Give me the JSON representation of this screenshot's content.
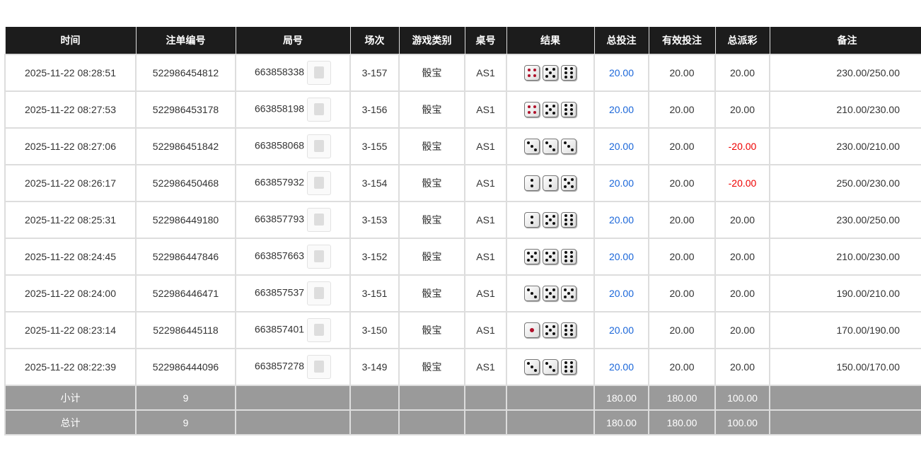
{
  "headers": [
    "时间",
    "注单编号",
    "局号",
    "场次",
    "游戏类别",
    "桌号",
    "结果",
    "总投注",
    "有效投注",
    "总派彩",
    "备注"
  ],
  "rows": [
    {
      "time": "2025-11-22 08:28:51",
      "bet_id": "522986454812",
      "round": "663858338",
      "session": "3-157",
      "game": "骰宝",
      "table": "AS1",
      "dice": [
        4,
        5,
        6
      ],
      "total_bet": "20.00",
      "valid_bet": "20.00",
      "payout": "20.00",
      "note": "230.00/250.00"
    },
    {
      "time": "2025-11-22 08:27:53",
      "bet_id": "522986453178",
      "round": "663858198",
      "session": "3-156",
      "game": "骰宝",
      "table": "AS1",
      "dice": [
        4,
        5,
        6
      ],
      "total_bet": "20.00",
      "valid_bet": "20.00",
      "payout": "20.00",
      "note": "210.00/230.00"
    },
    {
      "time": "2025-11-22 08:27:06",
      "bet_id": "522986451842",
      "round": "663858068",
      "session": "3-155",
      "game": "骰宝",
      "table": "AS1",
      "dice": [
        3,
        3,
        3
      ],
      "total_bet": "20.00",
      "valid_bet": "20.00",
      "payout": "-20.00",
      "note": "230.00/210.00"
    },
    {
      "time": "2025-11-22 08:26:17",
      "bet_id": "522986450468",
      "round": "663857932",
      "session": "3-154",
      "game": "骰宝",
      "table": "AS1",
      "dice": [
        2,
        2,
        5
      ],
      "total_bet": "20.00",
      "valid_bet": "20.00",
      "payout": "-20.00",
      "note": "250.00/230.00"
    },
    {
      "time": "2025-11-22 08:25:31",
      "bet_id": "522986449180",
      "round": "663857793",
      "session": "3-153",
      "game": "骰宝",
      "table": "AS1",
      "dice": [
        2,
        5,
        6
      ],
      "total_bet": "20.00",
      "valid_bet": "20.00",
      "payout": "20.00",
      "note": "230.00/250.00"
    },
    {
      "time": "2025-11-22 08:24:45",
      "bet_id": "522986447846",
      "round": "663857663",
      "session": "3-152",
      "game": "骰宝",
      "table": "AS1",
      "dice": [
        5,
        5,
        6
      ],
      "total_bet": "20.00",
      "valid_bet": "20.00",
      "payout": "20.00",
      "note": "210.00/230.00"
    },
    {
      "time": "2025-11-22 08:24:00",
      "bet_id": "522986446471",
      "round": "663857537",
      "session": "3-151",
      "game": "骰宝",
      "table": "AS1",
      "dice": [
        3,
        5,
        5
      ],
      "total_bet": "20.00",
      "valid_bet": "20.00",
      "payout": "20.00",
      "note": "190.00/210.00"
    },
    {
      "time": "2025-11-22 08:23:14",
      "bet_id": "522986445118",
      "round": "663857401",
      "session": "3-150",
      "game": "骰宝",
      "table": "AS1",
      "dice": [
        1,
        5,
        6
      ],
      "total_bet": "20.00",
      "valid_bet": "20.00",
      "payout": "20.00",
      "note": "170.00/190.00"
    },
    {
      "time": "2025-11-22 08:22:39",
      "bet_id": "522986444096",
      "round": "663857278",
      "session": "3-149",
      "game": "骰宝",
      "table": "AS1",
      "dice": [
        3,
        3,
        6
      ],
      "total_bet": "20.00",
      "valid_bet": "20.00",
      "payout": "20.00",
      "note": "150.00/170.00"
    }
  ],
  "subtotal": {
    "label": "小计",
    "count": "9",
    "total_bet": "180.00",
    "valid_bet": "180.00",
    "payout": "100.00"
  },
  "total": {
    "label": "总计",
    "count": "9",
    "total_bet": "180.00",
    "valid_bet": "180.00",
    "payout": "100.00"
  },
  "colors": {
    "positive_bet": "#1a66d9",
    "negative_payout": "#e00000",
    "header_bg": "#1c1c1c",
    "summary_bg": "#9a9a9a"
  },
  "icons": {
    "round_video": "video-replay-icon"
  }
}
